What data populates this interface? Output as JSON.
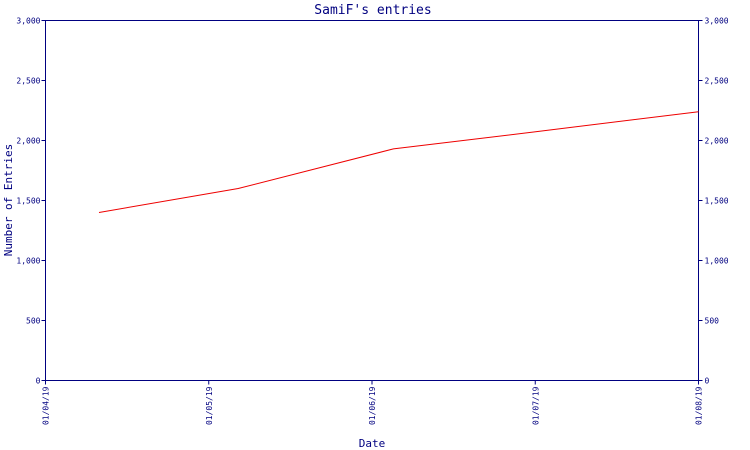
{
  "chart_data": {
    "type": "line",
    "title": "SamiF's entries",
    "xlabel": "Date",
    "ylabel": "Number of Entries",
    "x_ticks": [
      "01/04/19",
      "01/05/19",
      "01/06/19",
      "01/07/19",
      "01/08/19"
    ],
    "y_ticks": [
      "0",
      "500",
      "1,000",
      "1,500",
      "2,000",
      "2,500",
      "3,000"
    ],
    "ylim": [
      0,
      3000
    ],
    "xlim": [
      "2019-04-01",
      "2019-08-01"
    ],
    "right_axis": true,
    "grid": false,
    "series": [
      {
        "color": "#ee0000",
        "points": [
          {
            "date": "2019-04-11",
            "value": 1400
          },
          {
            "date": "2019-05-07",
            "value": 1600
          },
          {
            "date": "2019-06-05",
            "value": 1930
          },
          {
            "date": "2019-07-01",
            "value": 2070
          },
          {
            "date": "2019-08-01",
            "value": 2240
          }
        ]
      }
    ]
  }
}
